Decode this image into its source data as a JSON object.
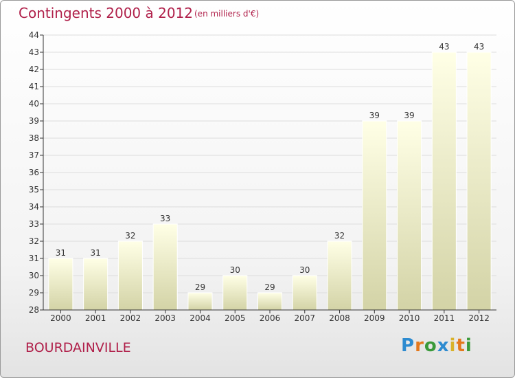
{
  "header": {
    "title": "Contingents 2000 à 2012",
    "subtitle": "(en milliers d'€)"
  },
  "footer": {
    "commune": "BOURDAINVILLE",
    "logo_text": "Proxiti"
  },
  "colors": {
    "title": "#b0204a",
    "bar_light": "#ffffe6",
    "bar_dark": "#d3d3a6",
    "axis": "#333333"
  },
  "chart_data": {
    "type": "bar",
    "categories": [
      "2000",
      "2001",
      "2002",
      "2003",
      "2004",
      "2005",
      "2006",
      "2007",
      "2008",
      "2009",
      "2010",
      "2011",
      "2012"
    ],
    "values": [
      31,
      31,
      32,
      33,
      29,
      30,
      29,
      30,
      32,
      39,
      39,
      43,
      43
    ],
    "ylim": [
      28,
      44
    ],
    "yticks": [
      28,
      29,
      30,
      31,
      32,
      33,
      34,
      35,
      36,
      37,
      38,
      39,
      40,
      41,
      42,
      43,
      44
    ],
    "grid": true,
    "data_labels": true,
    "title": "Contingents 2000 à 2012",
    "xlabel": "",
    "ylabel": ""
  }
}
